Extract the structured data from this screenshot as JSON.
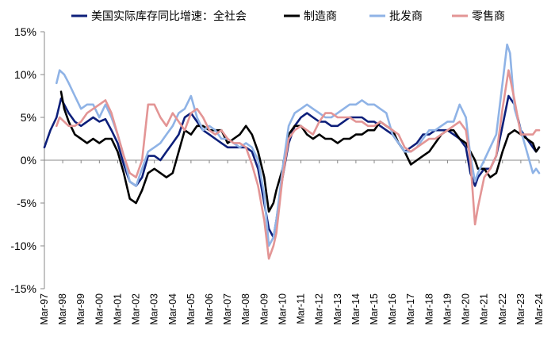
{
  "chart_data": {
    "type": "line",
    "title": "",
    "xlabel": "",
    "ylabel": "",
    "ylim": [
      -15,
      15
    ],
    "yticks": [
      15,
      10,
      5,
      0,
      -5,
      -10,
      -15
    ],
    "ytick_labels": [
      "15%",
      "10%",
      "5%",
      "0%",
      "-5%",
      "-10%",
      "-15%"
    ],
    "x_range": [
      1997.17,
      2024.17
    ],
    "xtick_labels": [
      "Mar-97",
      "Mar-98",
      "Mar-99",
      "Mar-00",
      "Mar-01",
      "Mar-02",
      "Mar-03",
      "Mar-04",
      "Mar-05",
      "Mar-06",
      "Mar-07",
      "Mar-08",
      "Mar-09",
      "Mar-10",
      "Mar-11",
      "Mar-12",
      "Mar-13",
      "Mar-14",
      "Mar-15",
      "Mar-16",
      "Mar-17",
      "Mar-18",
      "Mar-19",
      "Mar-20",
      "Mar-21",
      "Mar-22",
      "Mar-23",
      "Mar-24"
    ],
    "legend_position": "top",
    "series": [
      {
        "name": "美国实际库存同比增速：全社会",
        "color": "#0d1f7a",
        "x": [
          1997.17,
          1997.5,
          1997.83,
          1998.08,
          1998.25,
          1998.5,
          1998.83,
          1999.17,
          1999.5,
          1999.83,
          2000.17,
          2000.5,
          2000.83,
          2001.17,
          2001.5,
          2001.83,
          2002.17,
          2002.5,
          2002.83,
          2003.17,
          2003.5,
          2003.83,
          2004.17,
          2004.5,
          2004.83,
          2005.17,
          2005.5,
          2005.83,
          2006.17,
          2006.5,
          2006.83,
          2007.17,
          2007.5,
          2007.83,
          2008.17,
          2008.5,
          2008.83,
          2009.17,
          2009.42,
          2009.67,
          2009.83,
          2010.17,
          2010.5,
          2010.83,
          2011.17,
          2011.5,
          2011.83,
          2012.17,
          2012.5,
          2012.83,
          2013.17,
          2013.5,
          2013.83,
          2014.17,
          2014.5,
          2014.83,
          2015.17,
          2015.5,
          2015.83,
          2016.17,
          2016.5,
          2016.83,
          2017.17,
          2017.5,
          2017.83,
          2018.17,
          2018.5,
          2018.83,
          2019.17,
          2019.5,
          2019.83,
          2020.17,
          2020.42,
          2020.67,
          2020.83,
          2021.17,
          2021.5,
          2021.83,
          2022.17,
          2022.5,
          2022.83,
          2023.17,
          2023.5,
          2023.83,
          2024.0,
          2024.17
        ],
        "values": [
          1.5,
          3.5,
          5.0,
          7.2,
          6.5,
          5.5,
          4.5,
          4.0,
          4.5,
          5.0,
          4.5,
          4.8,
          3.5,
          2.0,
          -0.5,
          -2.5,
          -3.0,
          -2.0,
          0.5,
          0.5,
          0.0,
          1.0,
          2.0,
          3.0,
          5.0,
          5.5,
          4.5,
          3.5,
          3.0,
          2.5,
          2.0,
          1.5,
          1.5,
          1.5,
          1.5,
          1.0,
          -1.0,
          -5.0,
          -8.0,
          -9.0,
          -7.0,
          -2.0,
          2.0,
          4.0,
          5.0,
          5.5,
          5.0,
          4.5,
          4.5,
          4.0,
          4.0,
          4.5,
          5.0,
          5.0,
          5.0,
          4.5,
          4.5,
          4.0,
          3.5,
          3.0,
          2.0,
          1.0,
          1.5,
          2.0,
          3.0,
          3.0,
          3.5,
          3.5,
          3.5,
          3.0,
          2.5,
          1.5,
          -1.5,
          -3.0,
          -2.0,
          -1.0,
          -1.0,
          0.5,
          4.0,
          7.5,
          6.5,
          3.5,
          2.5,
          1.5,
          1.0,
          1.5
        ]
      },
      {
        "name": "制造商",
        "color": "#000000",
        "x": [
          1998.08,
          1998.25,
          1998.5,
          1998.83,
          1999.17,
          1999.5,
          1999.83,
          2000.17,
          2000.5,
          2000.83,
          2001.17,
          2001.5,
          2001.83,
          2002.17,
          2002.5,
          2002.83,
          2003.17,
          2003.5,
          2003.83,
          2004.17,
          2004.5,
          2004.83,
          2005.17,
          2005.5,
          2005.83,
          2006.17,
          2006.5,
          2006.83,
          2007.17,
          2007.5,
          2007.83,
          2008.17,
          2008.5,
          2008.83,
          2009.17,
          2009.42,
          2009.67,
          2009.83,
          2010.17,
          2010.5,
          2010.83,
          2011.17,
          2011.5,
          2011.83,
          2012.17,
          2012.5,
          2012.83,
          2013.17,
          2013.5,
          2013.83,
          2014.17,
          2014.5,
          2014.83,
          2015.17,
          2015.5,
          2015.83,
          2016.17,
          2016.5,
          2016.83,
          2017.17,
          2017.5,
          2017.83,
          2018.17,
          2018.5,
          2018.83,
          2019.17,
          2019.5,
          2019.83,
          2020.17,
          2020.42,
          2020.67,
          2020.83,
          2021.17,
          2021.5,
          2021.83,
          2022.17,
          2022.5,
          2022.83,
          2023.17,
          2023.5,
          2023.83,
          2024.0,
          2024.17
        ],
        "values": [
          8.0,
          6.0,
          4.5,
          3.0,
          2.5,
          2.0,
          2.5,
          2.0,
          2.5,
          2.5,
          1.0,
          -1.5,
          -4.5,
          -5.0,
          -3.5,
          -1.5,
          -1.0,
          -1.5,
          -2.0,
          -1.5,
          1.0,
          3.5,
          3.0,
          4.0,
          4.0,
          3.5,
          3.5,
          3.5,
          2.0,
          2.5,
          3.0,
          4.0,
          3.0,
          1.0,
          -2.0,
          -6.0,
          -5.0,
          -3.5,
          -1.0,
          3.0,
          4.0,
          4.0,
          3.0,
          2.5,
          3.0,
          2.5,
          2.5,
          2.0,
          2.5,
          2.5,
          3.0,
          3.0,
          3.5,
          3.5,
          4.5,
          4.0,
          3.5,
          2.0,
          1.0,
          -0.5,
          0.0,
          0.5,
          1.0,
          2.0,
          3.0,
          3.5,
          3.5,
          2.5,
          2.0,
          1.0,
          0.0,
          -1.0,
          -1.0,
          -2.0,
          -1.5,
          1.0,
          3.0,
          3.5,
          3.0,
          2.5,
          2.0,
          1.0,
          1.5
        ]
      },
      {
        "name": "批发商",
        "color": "#8fb3e6",
        "x": [
          1997.83,
          1998.0,
          1998.25,
          1998.5,
          1998.83,
          1999.17,
          1999.5,
          1999.83,
          2000.17,
          2000.5,
          2000.83,
          2001.17,
          2001.5,
          2001.83,
          2002.17,
          2002.5,
          2002.83,
          2003.17,
          2003.5,
          2003.83,
          2004.17,
          2004.5,
          2004.83,
          2005.17,
          2005.5,
          2005.83,
          2006.17,
          2006.5,
          2006.83,
          2007.17,
          2007.5,
          2007.83,
          2008.17,
          2008.5,
          2008.83,
          2009.17,
          2009.42,
          2009.67,
          2009.83,
          2010.17,
          2010.5,
          2010.83,
          2011.17,
          2011.5,
          2011.83,
          2012.17,
          2012.5,
          2012.83,
          2013.17,
          2013.5,
          2013.83,
          2014.17,
          2014.5,
          2014.83,
          2015.17,
          2015.5,
          2015.83,
          2016.17,
          2016.5,
          2016.83,
          2017.17,
          2017.5,
          2017.83,
          2018.17,
          2018.5,
          2018.83,
          2019.17,
          2019.5,
          2019.83,
          2020.17,
          2020.42,
          2020.67,
          2020.83,
          2021.17,
          2021.5,
          2021.83,
          2022.17,
          2022.42,
          2022.58,
          2022.83,
          2023.17,
          2023.5,
          2023.83,
          2024.0,
          2024.17
        ],
        "values": [
          9.0,
          10.5,
          10.0,
          9.0,
          7.5,
          6.0,
          6.5,
          6.5,
          5.0,
          6.5,
          5.0,
          3.0,
          0.5,
          -2.5,
          -3.0,
          -1.0,
          1.0,
          1.5,
          2.0,
          3.0,
          4.0,
          5.5,
          6.0,
          7.5,
          5.0,
          3.5,
          4.0,
          3.5,
          2.5,
          2.5,
          2.0,
          1.5,
          2.0,
          1.5,
          0.0,
          -4.0,
          -10.0,
          -9.0,
          -7.0,
          -1.0,
          4.0,
          5.5,
          6.0,
          6.5,
          6.0,
          5.5,
          5.0,
          5.0,
          5.5,
          6.0,
          6.5,
          6.5,
          7.0,
          6.5,
          6.5,
          6.0,
          5.5,
          3.0,
          2.0,
          1.0,
          1.0,
          1.5,
          2.5,
          3.5,
          3.5,
          4.0,
          4.5,
          4.5,
          6.5,
          5.0,
          0.5,
          -2.5,
          -1.5,
          0.0,
          1.5,
          3.0,
          9.0,
          13.5,
          12.5,
          6.0,
          3.5,
          1.0,
          -1.5,
          -1.0,
          -1.5
        ]
      },
      {
        "name": "零售商",
        "color": "#e39595",
        "x": [
          1997.83,
          1998.0,
          1998.25,
          1998.5,
          1998.83,
          1999.17,
          1999.5,
          1999.83,
          2000.17,
          2000.5,
          2000.83,
          2001.17,
          2001.5,
          2001.83,
          2002.17,
          2002.5,
          2002.83,
          2003.17,
          2003.5,
          2003.83,
          2004.17,
          2004.5,
          2004.83,
          2005.17,
          2005.5,
          2005.83,
          2006.17,
          2006.5,
          2006.83,
          2007.17,
          2007.5,
          2007.83,
          2008.17,
          2008.5,
          2008.83,
          2009.17,
          2009.42,
          2009.67,
          2009.83,
          2010.17,
          2010.5,
          2010.83,
          2011.17,
          2011.5,
          2011.83,
          2012.17,
          2012.5,
          2012.83,
          2013.17,
          2013.5,
          2013.83,
          2014.17,
          2014.5,
          2014.83,
          2015.17,
          2015.5,
          2015.83,
          2016.17,
          2016.5,
          2016.83,
          2017.17,
          2017.5,
          2017.83,
          2018.17,
          2018.5,
          2018.83,
          2019.17,
          2019.5,
          2019.83,
          2020.17,
          2020.42,
          2020.67,
          2020.83,
          2021.17,
          2021.5,
          2021.83,
          2022.17,
          2022.5,
          2022.83,
          2023.17,
          2023.5,
          2023.83,
          2024.0,
          2024.17
        ],
        "values": [
          4.0,
          5.0,
          4.5,
          4.0,
          4.0,
          4.5,
          5.5,
          6.0,
          6.5,
          7.0,
          5.5,
          3.0,
          0.5,
          -1.5,
          -2.0,
          0.0,
          6.5,
          6.5,
          5.0,
          4.0,
          5.5,
          4.5,
          3.5,
          5.5,
          6.0,
          5.0,
          3.5,
          3.0,
          3.5,
          2.5,
          2.0,
          2.0,
          1.5,
          -0.5,
          -3.0,
          -7.0,
          -11.5,
          -10.0,
          -8.5,
          -2.0,
          2.5,
          3.5,
          4.0,
          3.5,
          3.0,
          4.5,
          5.5,
          5.5,
          5.0,
          5.0,
          5.0,
          4.5,
          4.5,
          4.0,
          4.0,
          4.5,
          4.0,
          3.5,
          3.0,
          1.5,
          1.0,
          1.5,
          2.0,
          2.5,
          2.5,
          3.0,
          3.5,
          4.0,
          4.5,
          3.5,
          0.0,
          -7.5,
          -5.5,
          -2.0,
          -1.0,
          0.5,
          6.0,
          10.5,
          7.0,
          3.0,
          3.0,
          3.0,
          3.5,
          3.5
        ]
      }
    ]
  }
}
